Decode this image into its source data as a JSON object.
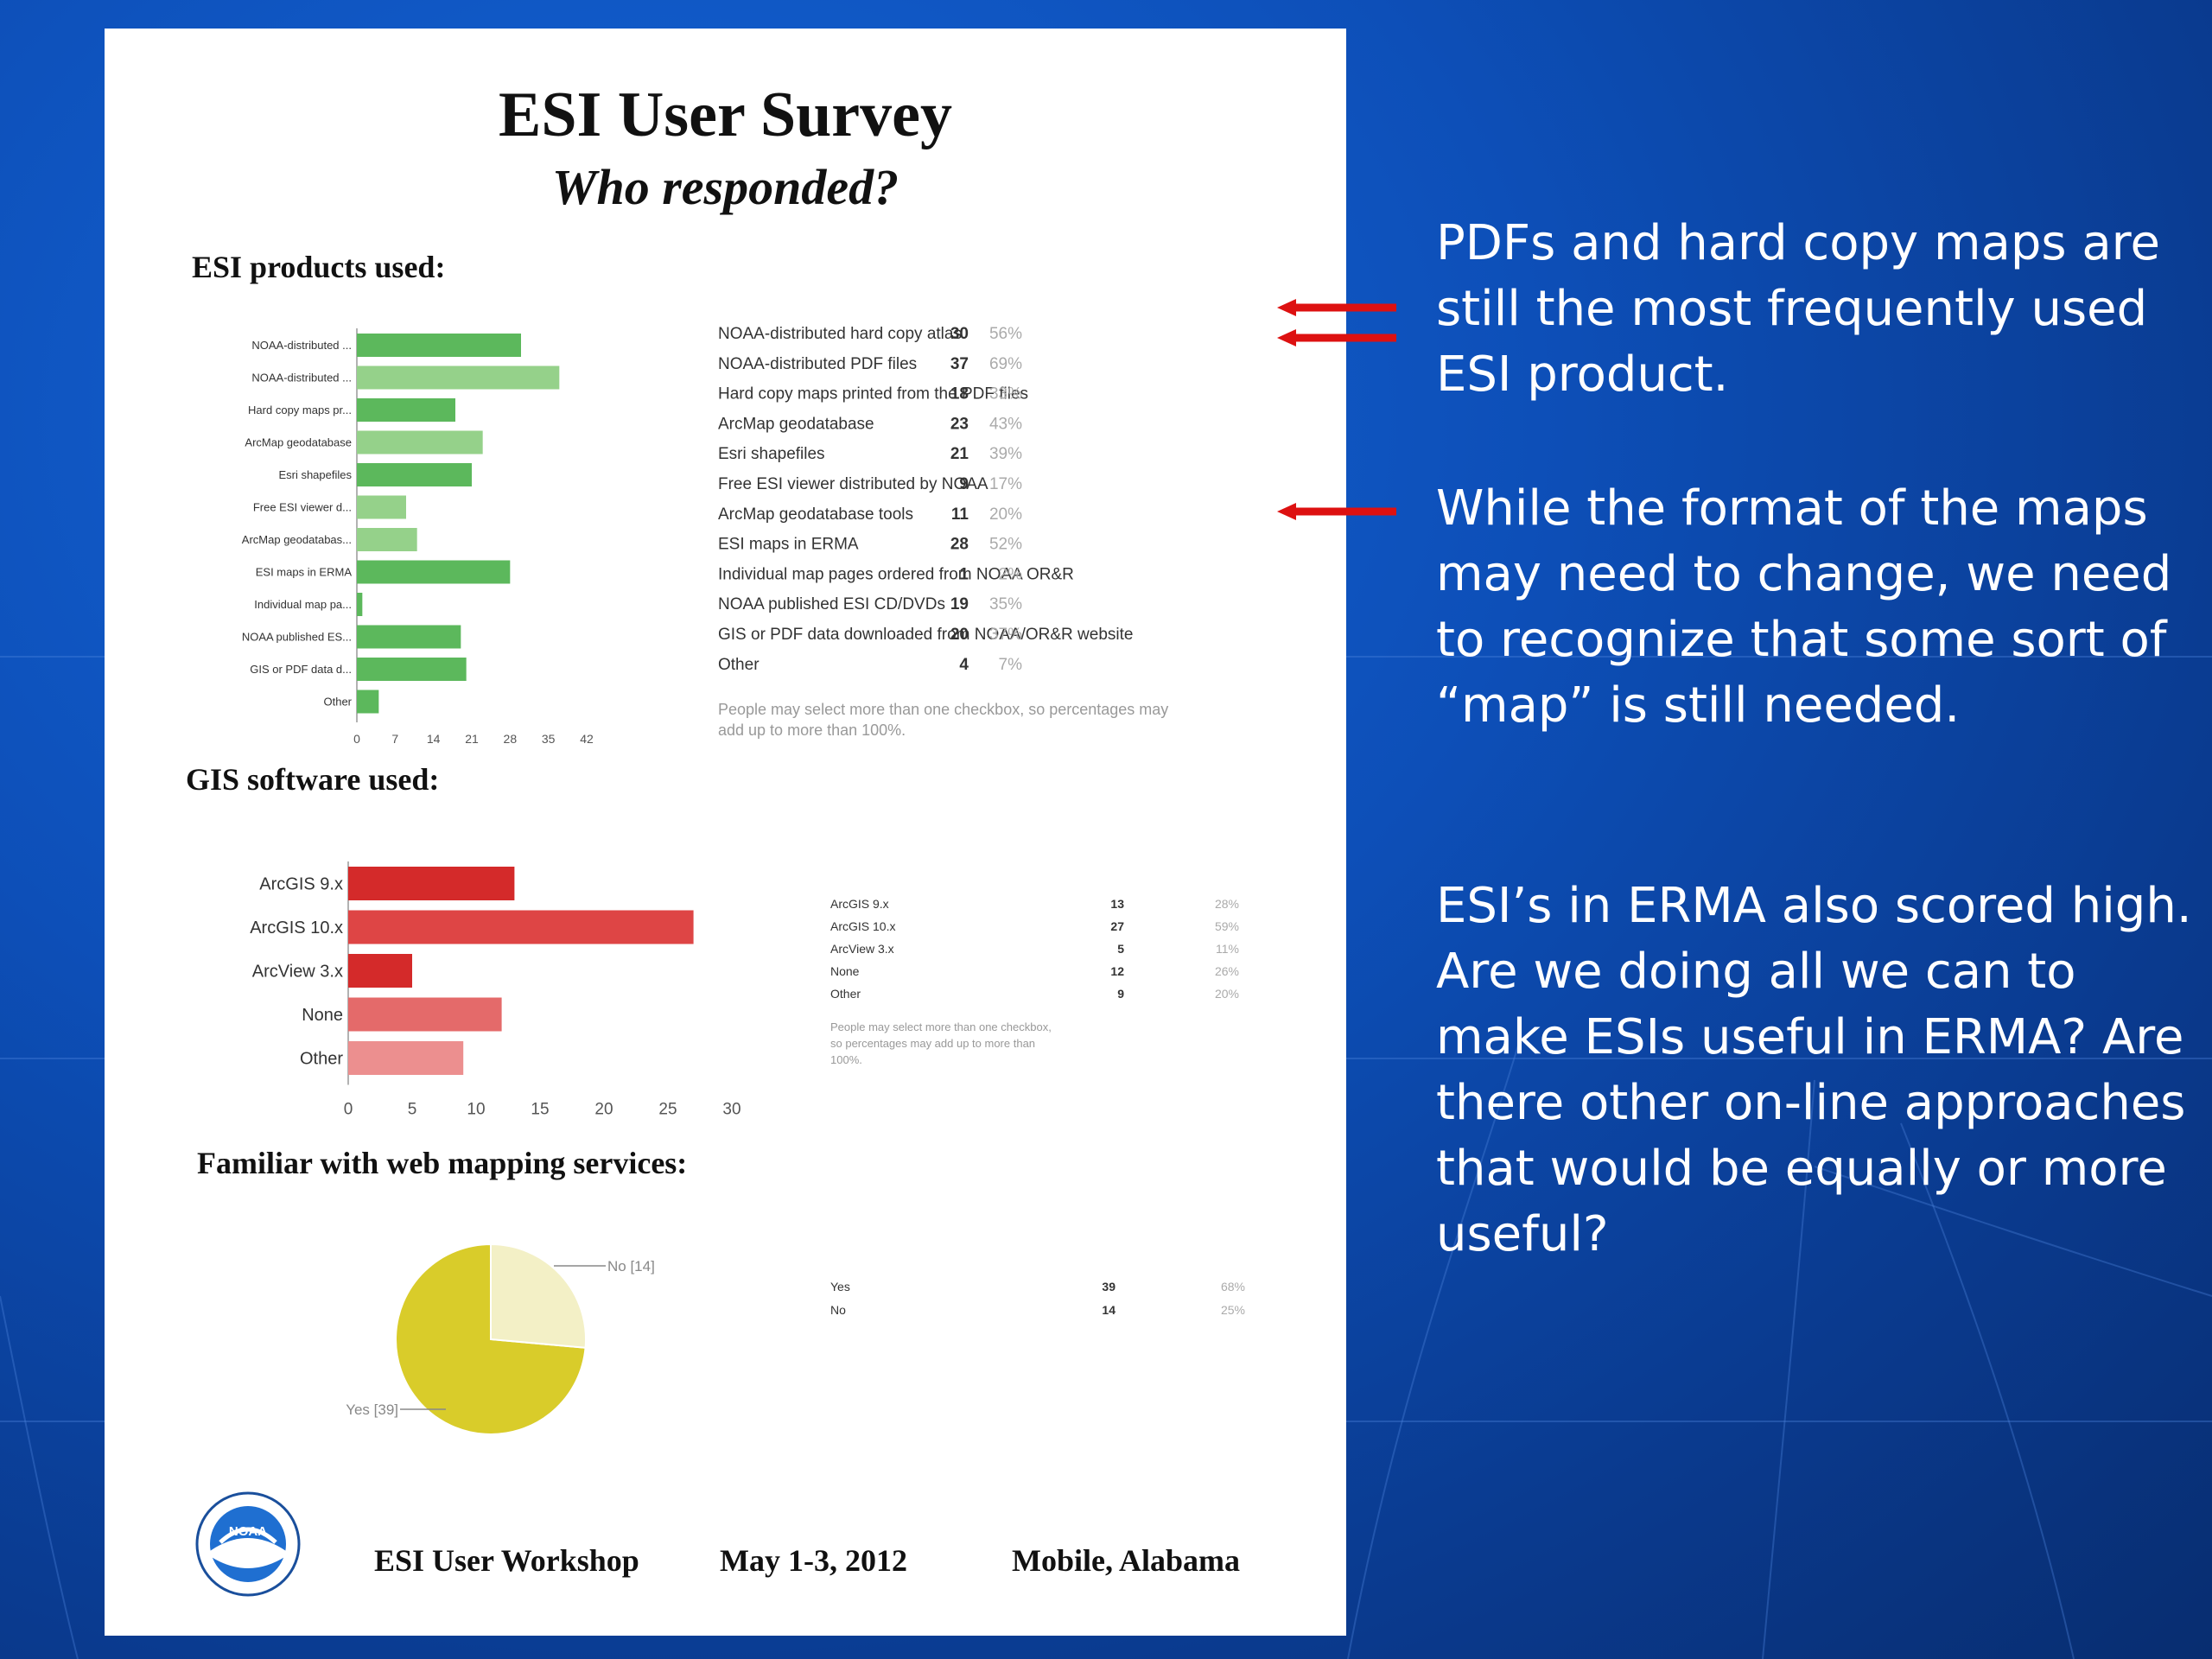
{
  "document": {
    "title": "ESI User Survey",
    "subtitle": "Who responded?",
    "footer": {
      "event": "ESI User Workshop",
      "dates": "May 1-3, 2012",
      "location": "Mobile, Alabama"
    },
    "logo_text": "NOAA"
  },
  "chart_data": [
    {
      "type": "bar",
      "orientation": "horizontal",
      "title": "ESI products used:",
      "categories": [
        "NOAA-distributed ...",
        "NOAA-distributed ...",
        "Hard copy maps pr...",
        "ArcMap geodatabase",
        "Esri shapefiles",
        "Free ESI viewer d...",
        "ArcMap geodatabas...",
        "ESI maps in ERMA",
        "Individual map pa...",
        "NOAA published ES...",
        "GIS or PDF data d...",
        "Other"
      ],
      "values": [
        30,
        37,
        18,
        23,
        21,
        9,
        11,
        28,
        1,
        19,
        20,
        4
      ],
      "colors": [
        "#5cb85c",
        "#95d18a",
        "#5cb85c",
        "#95d18a",
        "#5cb85c",
        "#95d18a",
        "#95d18a",
        "#5cb85c",
        "#5cb85c",
        "#5cb85c",
        "#5cb85c",
        "#5cb85c"
      ],
      "xticks": [
        0,
        7,
        14,
        21,
        28,
        35,
        42
      ],
      "xlim": [
        0,
        42
      ],
      "table": {
        "labels": [
          "NOAA-distributed hard copy atlas",
          "NOAA-distributed PDF files",
          "Hard copy maps printed from the PDF files",
          "ArcMap geodatabase",
          "Esri shapefiles",
          "Free ESI viewer distributed by NOAA",
          "ArcMap geodatabase tools",
          "ESI maps in ERMA",
          "Individual map pages ordered from NOAA OR&R",
          "NOAA published ESI CD/DVDs",
          "GIS or PDF data downloaded from NOAA/OR&R website",
          "Other"
        ],
        "counts": [
          "30",
          "37",
          "18",
          "23",
          "21",
          "9",
          "11",
          "28",
          "1",
          "19",
          "20",
          "4"
        ],
        "percents": [
          "56%",
          "69%",
          "33%",
          "43%",
          "39%",
          "17%",
          "20%",
          "52%",
          "2%",
          "35%",
          "37%",
          "7%"
        ]
      },
      "note": "People may select more than one checkbox, so percentages may add up to more than 100%.",
      "highlighted_rows": [
        0,
        1,
        7
      ]
    },
    {
      "type": "bar",
      "orientation": "horizontal",
      "title": "GIS software used:",
      "categories": [
        "ArcGIS 9.x",
        "ArcGIS 10.x",
        "ArcView 3.x",
        "None",
        "Other"
      ],
      "values": [
        13,
        27,
        5,
        12,
        9
      ],
      "colors": [
        "#d42a2a",
        "#de4545",
        "#d42a2a",
        "#e46a6a",
        "#ec8f8f"
      ],
      "xticks": [
        0,
        5,
        10,
        15,
        20,
        25,
        30
      ],
      "xlim": [
        0,
        30
      ],
      "table": {
        "labels": [
          "ArcGIS 9.x",
          "ArcGIS 10.x",
          "ArcView 3.x",
          "None",
          "Other"
        ],
        "counts": [
          "13",
          "27",
          "5",
          "12",
          "9"
        ],
        "percents": [
          "28%",
          "59%",
          "11%",
          "26%",
          "20%"
        ]
      },
      "note": "People may select more than one checkbox, so percentages may add up to more than 100%."
    },
    {
      "type": "pie",
      "title": "Familiar with web mapping services:",
      "categories": [
        "Yes",
        "No"
      ],
      "values": [
        39,
        14
      ],
      "colors": [
        "#d9cc2a",
        "#f3f0c6"
      ],
      "slice_labels": [
        "Yes [39]",
        "No [14]"
      ],
      "table": {
        "labels": [
          "Yes",
          "No"
        ],
        "counts": [
          "39",
          "14"
        ],
        "percents": [
          "68%",
          "25%"
        ]
      }
    }
  ],
  "commentary": [
    "PDFs and hard copy maps are still the most frequently used ESI product.",
    "While the format of the maps may need to change, we need to recognize that some sort of “map” is still needed.",
    "ESI’s in ERMA also scored high. Are we doing all we can to make ESIs useful in ERMA? Are there other on-line approaches that would be equally or more useful?"
  ]
}
